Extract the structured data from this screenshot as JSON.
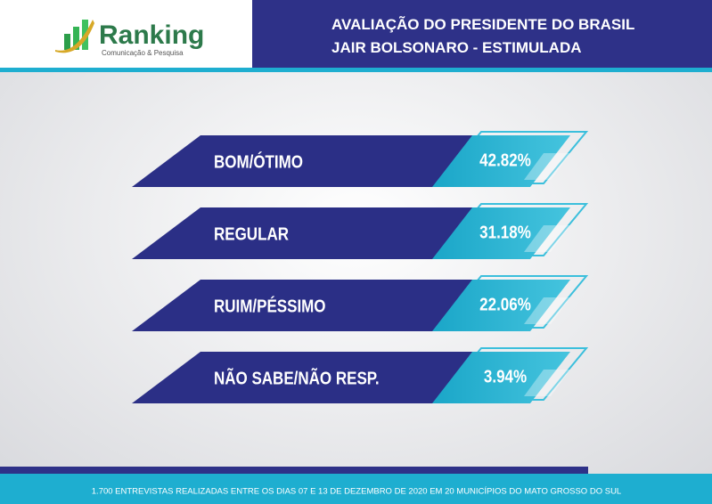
{
  "header": {
    "logo": "Ranking",
    "logo_subtitle": "Comunicação & Pesquisa",
    "title_line1": "AVALIAÇÃO DO PRESIDENTE DO BRASIL",
    "title_line2": "JAIR BOLSONARO - ESTIMULADA"
  },
  "items": [
    {
      "label": "BOM/ÓTIMO",
      "value": "42.82%"
    },
    {
      "label": "REGULAR",
      "value": "31.18%"
    },
    {
      "label": "RUIM/PÉSSIMO",
      "value": "22.06%"
    },
    {
      "label": "NÃO SABE/NÃO RESP.",
      "value": "3.94%"
    }
  ],
  "footer": "1.700 ENTREVISTAS REALIZADAS ENTRE OS DIAS 07 E 13 DE DEZEMBRO DE 2020 EM 20 MUNICÍPIOS DO MATO GROSSO DO SUL"
}
